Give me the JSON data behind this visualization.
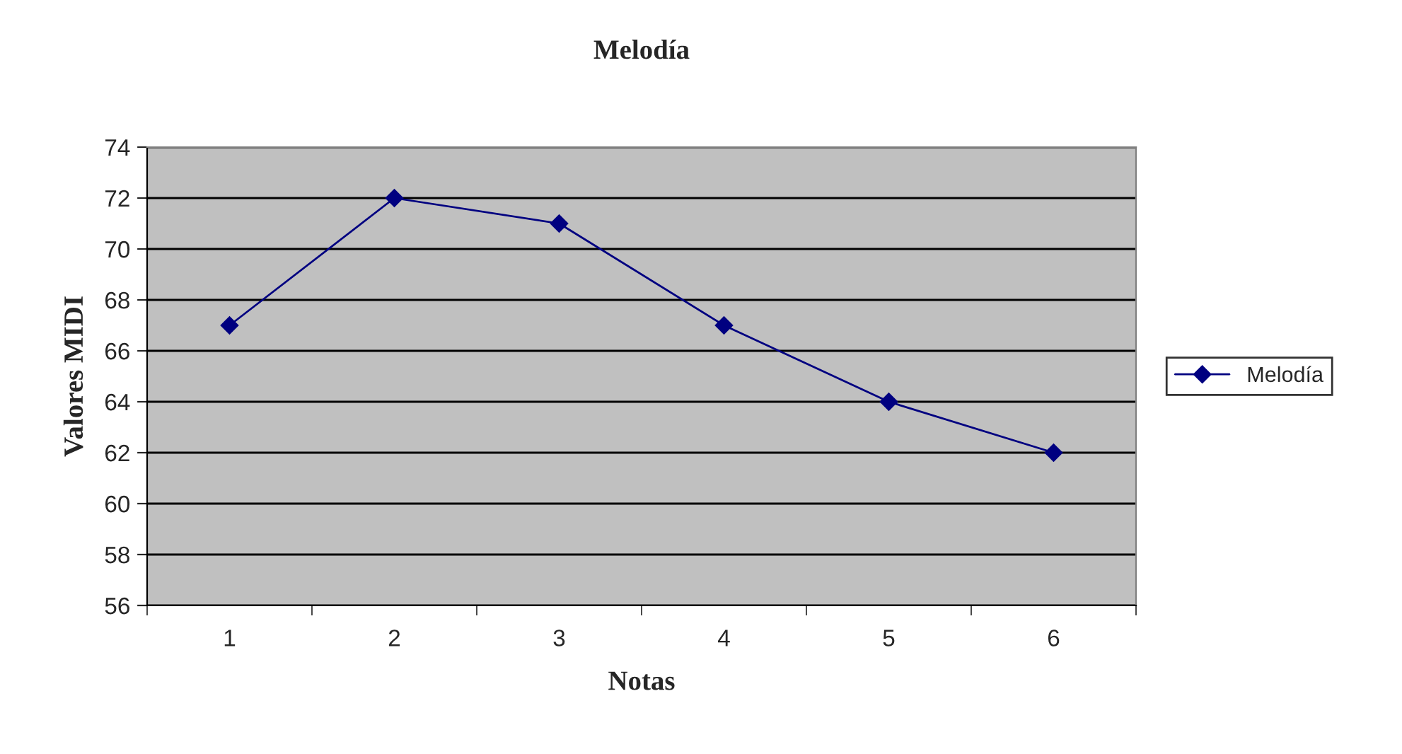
{
  "chart_data": {
    "type": "line",
    "title": "Melodía",
    "xlabel": "Notas",
    "ylabel": "Valores MIDI",
    "categories": [
      "1",
      "2",
      "3",
      "4",
      "5",
      "6"
    ],
    "series": [
      {
        "name": "Melodía",
        "color": "#000080",
        "values": [
          67,
          72,
          71,
          67,
          64,
          62
        ]
      }
    ],
    "ylim": [
      56,
      74
    ],
    "yticks": [
      56,
      58,
      60,
      62,
      64,
      66,
      68,
      70,
      72,
      74
    ],
    "grid": "y",
    "legend": "right",
    "marker": "diamond",
    "line_style": "solid"
  }
}
